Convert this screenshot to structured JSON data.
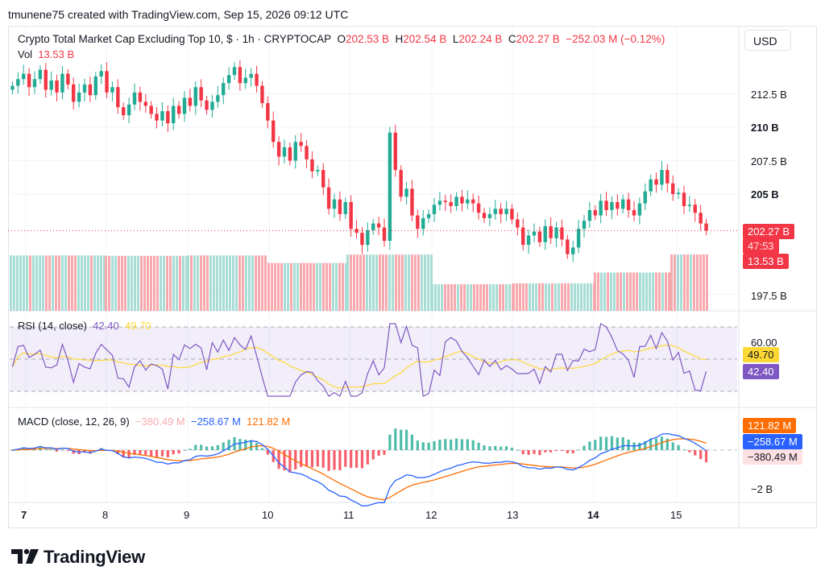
{
  "header": {
    "created_line": "tmunene75 created with TradingView.com, Sep 15, 2026 09:12 UTC"
  },
  "symbol": {
    "title": "Crypto Total Market Cap Excluding Top 10, $ · 1h · CRYPTOCAP",
    "o_label": "O",
    "o_value": "202.53 B",
    "h_label": "H",
    "h_value": "202.54 B",
    "l_label": "L",
    "l_value": "202.24 B",
    "c_label": "C",
    "c_value": "202.27 B",
    "change": "−252.03 M (−0.12%)",
    "vol_label": "Vol",
    "vol_value": "13.53 B"
  },
  "currency_button": "USD",
  "price_axis": {
    "labels": [
      "212.5 B",
      "210 B",
      "207.5 B",
      "205 B",
      "197.5 B"
    ],
    "bold": [
      false,
      true,
      false,
      true,
      false
    ]
  },
  "price_tags": {
    "last": "202.27 B",
    "countdown": "47:53",
    "volume": "13.53 B"
  },
  "rsi": {
    "title": "RSI (14, close)",
    "value": "42.40",
    "ma": "49.70",
    "axis_label": "60.00",
    "tag_ma": "49.70",
    "tag_value": "42.40"
  },
  "macd": {
    "title": "MACD (close, 12, 26, 9)",
    "hist": "−380.49 M",
    "macd_line": "−258.67 M",
    "signal": "121.82 M",
    "axis_label": "−2 B",
    "tag_signal": "121.82 M",
    "tag_macd": "−258.67 M",
    "tag_hist": "−380.49 M"
  },
  "x_axis": [
    "7",
    "8",
    "9",
    "10",
    "11",
    "12",
    "13",
    "14",
    "15"
  ],
  "x_axis_bold": [
    true,
    false,
    false,
    false,
    false,
    false,
    false,
    true,
    false
  ],
  "brand": {
    "logo_text": "TradingView"
  },
  "colors": {
    "up": "#22ab94",
    "down": "#f23645",
    "rsi": "#7e57c2",
    "rsi_ma": "#fdd835",
    "macd": "#2962ff",
    "signal": "#ff6d00",
    "up_vol": "#a7ddd5",
    "down_vol": "#f7a9ae"
  },
  "chart_data": {
    "type": "candlestick",
    "interval": "1h",
    "x_labels": [
      "7",
      "8",
      "9",
      "10",
      "11",
      "12",
      "13",
      "14",
      "15"
    ],
    "price_ylim": [
      196.5,
      215
    ],
    "last_price": 202.27,
    "price_path": [
      213.1,
      213.6,
      214.0,
      213.0,
      213.6,
      214.3,
      212.8,
      213.5,
      212.6,
      214.0,
      213.2,
      211.9,
      212.6,
      213.2,
      212.4,
      213.8,
      214.2,
      212.6,
      213.0,
      211.5,
      210.9,
      211.7,
      212.6,
      211.9,
      211.6,
      211.0,
      210.5,
      211.2,
      210.3,
      211.6,
      211.0,
      212.2,
      211.6,
      213.0,
      212.0,
      211.3,
      211.9,
      212.4,
      213.3,
      213.9,
      214.5,
      213.3,
      213.7,
      214.0,
      213.1,
      211.8,
      210.5,
      208.9,
      207.8,
      208.5,
      207.5,
      208.9,
      208.6,
      207.6,
      206.7,
      206.8,
      205.5,
      203.9,
      204.6,
      203.5,
      204.4,
      202.4,
      202.1,
      201.2,
      202.3,
      202.8,
      202.5,
      201.5,
      209.6,
      206.8,
      204.8,
      205.4,
      203.4,
      202.4,
      203.2,
      203.5,
      204.2,
      204.5,
      204.4,
      204.1,
      204.8,
      204.3,
      204.6,
      204.3,
      203.6,
      203.2,
      203.5,
      203.9,
      203.5,
      203.9,
      203.1,
      202.5,
      201.2,
      201.9,
      202.2,
      201.4,
      202.6,
      201.7,
      202.5,
      201.6,
      200.5,
      201.0,
      202.4,
      203.0,
      203.8,
      203.4,
      204.5,
      203.8,
      204.4,
      203.9,
      204.6,
      203.8,
      203.4,
      204.3,
      205.2,
      206.1,
      205.7,
      206.8,
      205.8,
      205.0,
      205.1,
      204.1,
      204.2,
      203.6,
      202.8,
      202.27
    ],
    "volume_sessions": [
      {
        "session": "7",
        "volume_B": 13.3
      },
      {
        "session": "8",
        "volume_B": 13.2
      },
      {
        "session": "9",
        "volume_B": 13.3
      },
      {
        "session": "10",
        "volume_B": 11.5
      },
      {
        "session": "11",
        "volume_B": 13.5
      },
      {
        "session": "12",
        "volume_B": 6.4
      },
      {
        "session": "13",
        "volume_B": 6.6
      },
      {
        "session": "14",
        "volume_B": 9.2
      },
      {
        "session": "15",
        "volume_B": 13.53
      }
    ],
    "rsi": {
      "period": 14,
      "last": 42.4,
      "ma_last": 49.7,
      "levels": [
        70,
        50,
        30
      ]
    },
    "macd": {
      "fast": 12,
      "slow": 26,
      "signal": 9,
      "hist_last_M": -380.49,
      "macd_last_M": -258.67,
      "signal_last_M": 121.82
    }
  }
}
